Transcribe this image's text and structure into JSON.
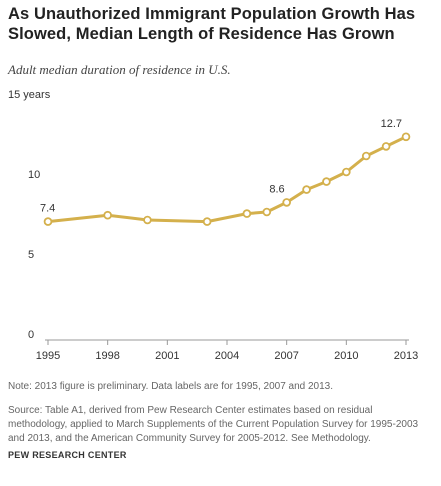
{
  "title": "As Unauthorized Immigrant Population Growth Has Slowed, Median Length of Residence Has Grown",
  "subtitle": "Adult median duration of residence in U.S.",
  "note": "Note: 2013 figure is preliminary. Data labels are for 1995, 2007 and 2013.",
  "source": "Source: Table A1, derived from Pew Research Center estimates based on residual methodology, applied to March Supplements of the Current Population Survey for 1995-2003 and 2013, and the American Community Survey for 2005-2012. See Methodology.",
  "credit": "PEW RESEARCH CENTER",
  "colors": {
    "line": "#d4b04c",
    "marker_fill": "#ffffff",
    "axis": "#999999",
    "text": "#333333"
  },
  "chart_data": {
    "type": "line",
    "title": "As Unauthorized Immigrant Population Growth Has Slowed, Median Length of Residence Has Grown",
    "subtitle": "Adult median duration of residence in U.S.",
    "xlabel": "",
    "ylabel": "",
    "xlim": [
      1995,
      2013
    ],
    "ylim": [
      0,
      15
    ],
    "grid": false,
    "legend": "none",
    "x_ticks": [
      "1995",
      "1998",
      "2001",
      "2004",
      "2007",
      "2010",
      "2013"
    ],
    "x_tick_values": [
      1995,
      1998,
      2001,
      2004,
      2007,
      2010,
      2013
    ],
    "y_ticks": [
      "0",
      "5",
      "10",
      "15 years"
    ],
    "y_tick_values": [
      0,
      5,
      10,
      15
    ],
    "series": [
      {
        "x": [
          1995,
          1998,
          2000,
          2003,
          2005,
          2006,
          2007,
          2008,
          2009,
          2010,
          2011,
          2012,
          2013
        ],
        "values": [
          7.4,
          7.8,
          7.5,
          7.4,
          7.9,
          8.0,
          8.6,
          9.4,
          9.9,
          10.5,
          11.5,
          12.1,
          12.7
        ]
      }
    ],
    "data_labels": [
      {
        "x": 1995,
        "y": 7.4,
        "text": "7.4"
      },
      {
        "x": 2007,
        "y": 8.6,
        "text": "8.6"
      },
      {
        "x": 2013,
        "y": 12.7,
        "text": "12.7"
      }
    ]
  }
}
